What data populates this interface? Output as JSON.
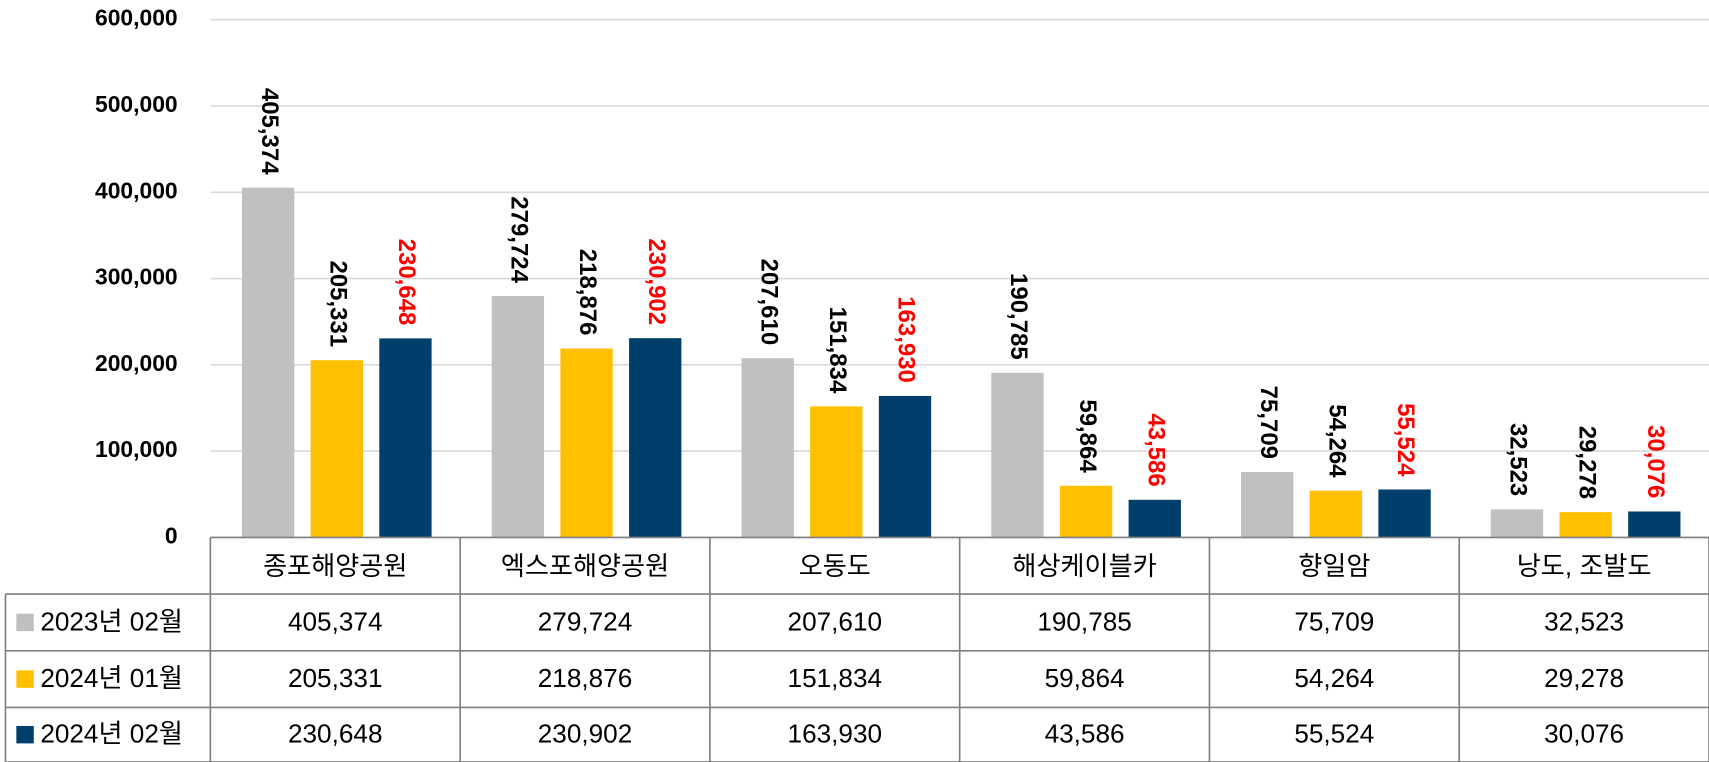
{
  "chart_data": {
    "type": "bar",
    "categories": [
      "종포해양공원",
      "엑스포해양공원",
      "오동도",
      "해상케이블카",
      "향일암",
      "낭도, 조발도"
    ],
    "series": [
      {
        "name": "2023년 02월",
        "color": "#c0c0c0",
        "label_color": "#000000",
        "values": [
          405374,
          279724,
          207610,
          190785,
          75709,
          32523
        ],
        "value_labels": [
          "405,374",
          "279,724",
          "207,610",
          "190,785",
          "75,709",
          "32,523"
        ]
      },
      {
        "name": "2024년 01월",
        "color": "#ffc000",
        "label_color": "#000000",
        "values": [
          205331,
          218876,
          151834,
          59864,
          54264,
          29278
        ],
        "value_labels": [
          "205,331",
          "218,876",
          "151,834",
          "59,864",
          "54,264",
          "29,278"
        ]
      },
      {
        "name": "2024년 02월",
        "color": "#003f6b",
        "label_color": "#ff0000",
        "values": [
          230648,
          230902,
          163930,
          43586,
          55524,
          30076
        ],
        "value_labels": [
          "230,648",
          "230,902",
          "163,930",
          "43,586",
          "55,524",
          "30,076"
        ]
      }
    ],
    "ylim": [
      0,
      600000
    ],
    "yticks": [
      0,
      {
        "value": 100000,
        "label": "100,000"
      },
      {
        "value": 200000,
        "label": "200,000"
      },
      {
        "value": 300000,
        "label": "300,000"
      },
      {
        "value": 400000,
        "label": "400,000"
      },
      {
        "value": 500000,
        "label": "500,000"
      },
      {
        "value": 600000,
        "label": "600,000"
      }
    ],
    "grid": true,
    "data_table": true
  }
}
